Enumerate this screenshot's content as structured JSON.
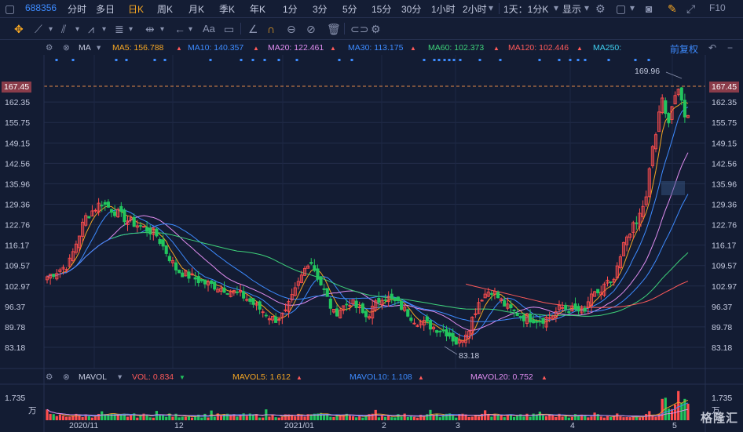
{
  "toolbar": {
    "stock_code": "688356",
    "periods": [
      "分时",
      "多日",
      "日K",
      "周K",
      "月K",
      "季K",
      "年K",
      "1分",
      "3分",
      "5分",
      "15分",
      "30分",
      "1小时",
      "2小时"
    ],
    "active_period": "日K",
    "range_label": "1天：1分K",
    "display_label": "显示",
    "f10_label": "F10"
  },
  "tools": {
    "text_tool_label": "Aa"
  },
  "ma_bar": {
    "title": "MA",
    "items": [
      {
        "label": "MA5: 156.788",
        "color": "#f5a623"
      },
      {
        "label": "MA10: 140.357",
        "color": "#3d8bff"
      },
      {
        "label": "MA20: 122.461",
        "color": "#e08df0"
      },
      {
        "label": "MA30: 113.175",
        "color": "#3d8bff"
      },
      {
        "label": "MA60: 102.373",
        "color": "#3ed27a"
      },
      {
        "label": "MA120: 102.446",
        "color": "#ff5a5a"
      },
      {
        "label": "MA250:",
        "color": "#3fd0f0"
      }
    ],
    "adjust_label": "前复权"
  },
  "price_axis": {
    "ticks": [
      "167.45",
      "162.35",
      "155.75",
      "149.15",
      "142.56",
      "135.96",
      "129.36",
      "122.76",
      "116.17",
      "109.57",
      "102.97",
      "96.37",
      "89.78",
      "83.18"
    ],
    "current_price": "167.45",
    "high_marker": "169.96",
    "low_marker": "83.18"
  },
  "vol_bar": {
    "title": "MAVOL",
    "items": [
      {
        "label": "VOL: 0.834",
        "color": "#ff5a5a"
      },
      {
        "label": "MAVOL5: 1.612",
        "color": "#f5a623"
      },
      {
        "label": "MAVOL10: 1.108",
        "color": "#3d8bff"
      },
      {
        "label": "MAVOL20: 0.752",
        "color": "#e08df0"
      }
    ],
    "axis_top": "1.735",
    "axis_unit": "万"
  },
  "x_axis": {
    "labels": [
      "2020/11",
      "12",
      "2021/01",
      "2",
      "3",
      "4",
      "5"
    ]
  },
  "watermark": "格隆汇",
  "colors": {
    "up": "#ff4d4d",
    "down": "#22c55e",
    "bg": "#131c33"
  }
}
